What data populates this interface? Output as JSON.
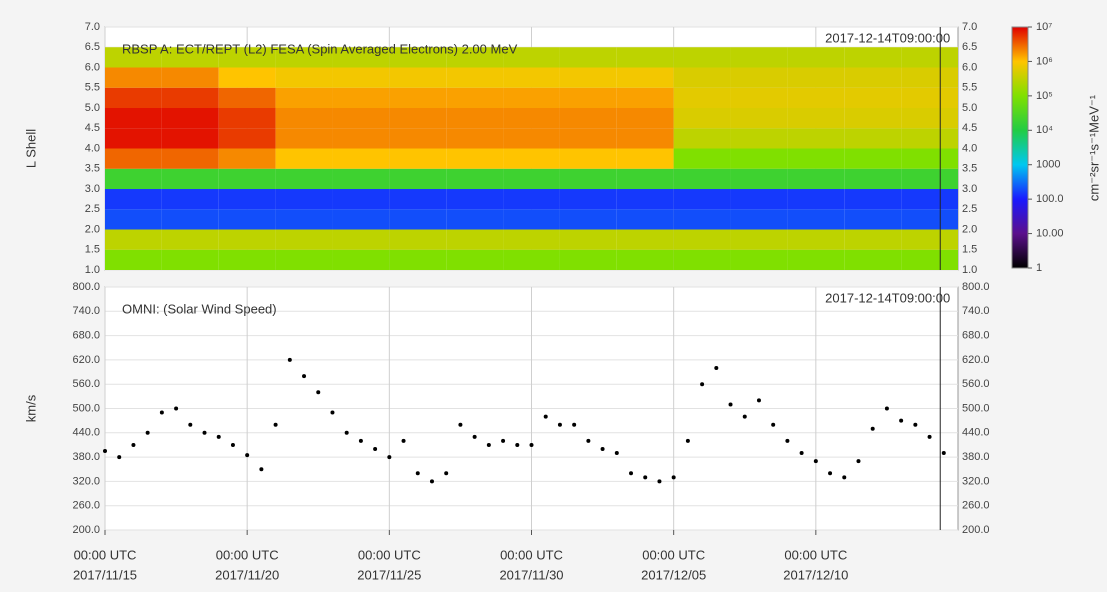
{
  "chart_data": [
    {
      "type": "heatmap",
      "title": "RBSP A: ECT/REPT (L2) FESA (Spin Averaged Electrons) 2.00 MeV",
      "ylabel": "L Shell",
      "x": [
        "2017/11/16 00:00",
        "2017/11/18 00:00",
        "2017/11/20 00:00",
        "2017/11/22 00:00",
        "2017/11/24 00:00",
        "2017/11/26 00:00",
        "2017/11/28 00:00",
        "2017/11/30 00:00",
        "2017/12/02 00:00",
        "2017/12/04 00:00",
        "2017/12/06 00:00",
        "2017/12/08 00:00",
        "2017/12/10 00:00",
        "2017/12/12 00:00",
        "2017/12/14 00:00"
      ],
      "y": [
        1.25,
        1.75,
        2.25,
        2.75,
        3.25,
        3.75,
        4.25,
        4.75,
        5.25,
        5.75,
        6.25
      ],
      "values": [
        [
          100000.0,
          100000.0,
          100000.0,
          100000.0,
          100000.0,
          100000.0,
          100000.0,
          100000.0,
          100000.0,
          100000.0,
          100000.0,
          100000.0,
          100000.0,
          100000.0,
          100000.0
        ],
        [
          300000.0,
          300000.0,
          300000.0,
          300000.0,
          300000.0,
          300000.0,
          300000.0,
          300000.0,
          300000.0,
          300000.0,
          300000.0,
          300000.0,
          300000.0,
          300000.0,
          300000.0
        ],
        [
          200,
          200,
          200,
          200,
          200,
          200,
          200,
          200,
          200,
          200,
          200,
          200,
          200,
          200,
          200
        ],
        [
          150,
          150,
          150,
          150,
          150,
          150,
          150,
          150,
          150,
          150,
          150,
          150,
          150,
          150,
          150
        ],
        [
          20000.0,
          20000.0,
          20000.0,
          20000.0,
          20000.0,
          20000.0,
          20000.0,
          20000.0,
          20000.0,
          20000.0,
          20000.0,
          20000.0,
          20000.0,
          20000.0,
          20000.0
        ],
        [
          3000000.0,
          3000000.0,
          2000000.0,
          1000000.0,
          1000000.0,
          1000000.0,
          1000000.0,
          1000000.0,
          1000000.0,
          1000000.0,
          100000.0,
          100000.0,
          100000.0,
          100000.0,
          100000.0
        ],
        [
          8000000.0,
          8000000.0,
          5000000.0,
          2000000.0,
          2000000.0,
          2000000.0,
          2000000.0,
          2000000.0,
          2000000.0,
          2000000.0,
          300000.0,
          300000.0,
          300000.0,
          300000.0,
          300000.0
        ],
        [
          8000000.0,
          8000000.0,
          5000000.0,
          2000000.0,
          2000000.0,
          2000000.0,
          2000000.0,
          2000000.0,
          2000000.0,
          2000000.0,
          500000.0,
          500000.0,
          500000.0,
          500000.0,
          500000.0
        ],
        [
          5000000.0,
          5000000.0,
          3000000.0,
          1500000.0,
          1500000.0,
          1500000.0,
          1500000.0,
          1500000.0,
          1500000.0,
          1500000.0,
          600000.0,
          600000.0,
          600000.0,
          600000.0,
          600000.0
        ],
        [
          2000000.0,
          2000000.0,
          1000000.0,
          800000.0,
          800000.0,
          800000.0,
          800000.0,
          800000.0,
          800000.0,
          800000.0,
          500000.0,
          500000.0,
          500000.0,
          500000.0,
          500000.0
        ],
        [
          300000.0,
          300000.0,
          300000.0,
          300000.0,
          300000.0,
          300000.0,
          300000.0,
          300000.0,
          300000.0,
          300000.0,
          300000.0,
          300000.0,
          300000.0,
          300000.0,
          300000.0
        ]
      ],
      "xlim": [
        "2017/11/15 00:00",
        "2017/12/15 00:00"
      ],
      "ylim": [
        1,
        7
      ],
      "yticks": [
        {
          "value": 1,
          "label": "1.0"
        },
        {
          "value": 1.5,
          "label": "1.5"
        },
        {
          "value": 2,
          "label": "2.0"
        },
        {
          "value": 2.5,
          "label": "2.5"
        },
        {
          "value": 3,
          "label": "3.0"
        },
        {
          "value": 3.5,
          "label": "3.5"
        },
        {
          "value": 4,
          "label": "4.0"
        },
        {
          "value": 4.5,
          "label": "4.5"
        },
        {
          "value": 5,
          "label": "5.0"
        },
        {
          "value": 5.5,
          "label": "5.5"
        },
        {
          "value": 6,
          "label": "6.0"
        },
        {
          "value": 6.5,
          "label": "6.5"
        },
        {
          "value": 7,
          "label": "7.0"
        }
      ],
      "cursor": {
        "value": "2017/12/14 09:00",
        "label": "2017-12-14T09:00:00"
      },
      "colorbar": {
        "title": "cm⁻²sr⁻¹s⁻¹MeV⁻¹",
        "log": true,
        "zlim": [
          1,
          10000000.0
        ],
        "colors": [
          "#000000",
          "#5b0f8c",
          "#1a1aff",
          "#00c8f0",
          "#22cc44",
          "#80e000",
          "#ffc400",
          "#e00000"
        ],
        "ticks": [
          {
            "value": 10000000.0,
            "label": "10⁷"
          },
          {
            "value": 1000000.0,
            "label": "10⁶"
          },
          {
            "value": 100000.0,
            "label": "10⁵"
          },
          {
            "value": 10000.0,
            "label": "10⁴"
          },
          1000,
          {
            "value": 100,
            "label": "100.0"
          },
          {
            "value": 10,
            "label": "10.00"
          },
          1
        ]
      }
    },
    {
      "type": "scatter",
      "title": "OMNI: (Solar Wind Speed)",
      "ylabel": "km/s",
      "color": "#000000",
      "x": [
        "2017/11/15 00:00",
        "2017/11/15 12:00",
        "2017/11/16 00:00",
        "2017/11/16 12:00",
        "2017/11/17 00:00",
        "2017/11/17 12:00",
        "2017/11/18 00:00",
        "2017/11/18 12:00",
        "2017/11/19 00:00",
        "2017/11/19 12:00",
        "2017/11/20 00:00",
        "2017/11/20 12:00",
        "2017/11/21 00:00",
        "2017/11/21 12:00",
        "2017/11/22 00:00",
        "2017/11/22 12:00",
        "2017/11/23 00:00",
        "2017/11/23 12:00",
        "2017/11/24 00:00",
        "2017/11/24 12:00",
        "2017/11/25 00:00",
        "2017/11/25 12:00",
        "2017/11/26 00:00",
        "2017/11/26 12:00",
        "2017/11/27 00:00",
        "2017/11/27 12:00",
        "2017/11/28 00:00",
        "2017/11/28 12:00",
        "2017/11/29 00:00",
        "2017/11/29 12:00",
        "2017/11/30 00:00",
        "2017/11/30 12:00",
        "2017/12/01 00:00",
        "2017/12/01 12:00",
        "2017/12/02 00:00",
        "2017/12/02 12:00",
        "2017/12/03 00:00",
        "2017/12/03 12:00",
        "2017/12/04 00:00",
        "2017/12/04 12:00",
        "2017/12/05 00:00",
        "2017/12/05 12:00",
        "2017/12/06 00:00",
        "2017/12/06 12:00",
        "2017/12/07 00:00",
        "2017/12/07 12:00",
        "2017/12/08 00:00",
        "2017/12/08 12:00",
        "2017/12/09 00:00",
        "2017/12/09 12:00",
        "2017/12/10 00:00",
        "2017/12/10 12:00",
        "2017/12/11 00:00",
        "2017/12/11 12:00",
        "2017/12/12 00:00",
        "2017/12/12 12:00",
        "2017/12/13 00:00",
        "2017/12/13 12:00",
        "2017/12/14 00:00",
        "2017/12/14 12:00"
      ],
      "values": [
        395,
        380,
        410,
        440,
        490,
        500,
        460,
        440,
        430,
        410,
        385,
        350,
        460,
        620,
        580,
        540,
        490,
        440,
        420,
        400,
        380,
        420,
        340,
        320,
        340,
        460,
        430,
        410,
        420,
        410,
        410,
        480,
        460,
        460,
        420,
        400,
        390,
        340,
        330,
        320,
        330,
        420,
        560,
        600,
        510,
        480,
        520,
        460,
        420,
        390,
        370,
        340,
        330,
        370,
        450,
        500,
        470,
        460,
        430,
        390
      ],
      "xlim": [
        "2017/11/15 00:00",
        "2017/12/15 00:00"
      ],
      "xticks": [
        {
          "value": "2017/11/15 00:00",
          "label": [
            "00:00 UTC",
            "2017/11/15"
          ]
        },
        {
          "value": "2017/11/20 00:00",
          "label": [
            "00:00 UTC",
            "2017/11/20"
          ]
        },
        {
          "value": "2017/11/25 00:00",
          "label": [
            "00:00 UTC",
            "2017/11/25"
          ]
        },
        {
          "value": "2017/11/30 00:00",
          "label": [
            "00:00 UTC",
            "2017/11/30"
          ]
        },
        {
          "value": "2017/12/05 00:00",
          "label": [
            "00:00 UTC",
            "2017/12/05"
          ]
        },
        {
          "value": "2017/12/10 00:00",
          "label": [
            "00:00 UTC",
            "2017/12/10"
          ]
        }
      ],
      "ylim": [
        200,
        800
      ],
      "yticks": [
        {
          "value": 200,
          "label": "200.0"
        },
        {
          "value": 260,
          "label": "260.0"
        },
        {
          "value": 320,
          "label": "320.0"
        },
        {
          "value": 380,
          "label": "380.0"
        },
        {
          "value": 440,
          "label": "440.0"
        },
        {
          "value": 500,
          "label": "500.0"
        },
        {
          "value": 560,
          "label": "560.0"
        },
        {
          "value": 620,
          "label": "620.0"
        },
        {
          "value": 680,
          "label": "680.0"
        },
        {
          "value": 740,
          "label": "740.0"
        },
        {
          "value": 800,
          "label": "800.0"
        }
      ],
      "cursor": {
        "value": "2017/12/14 09:00",
        "label": "2017-12-14T09:00:00"
      }
    }
  ]
}
